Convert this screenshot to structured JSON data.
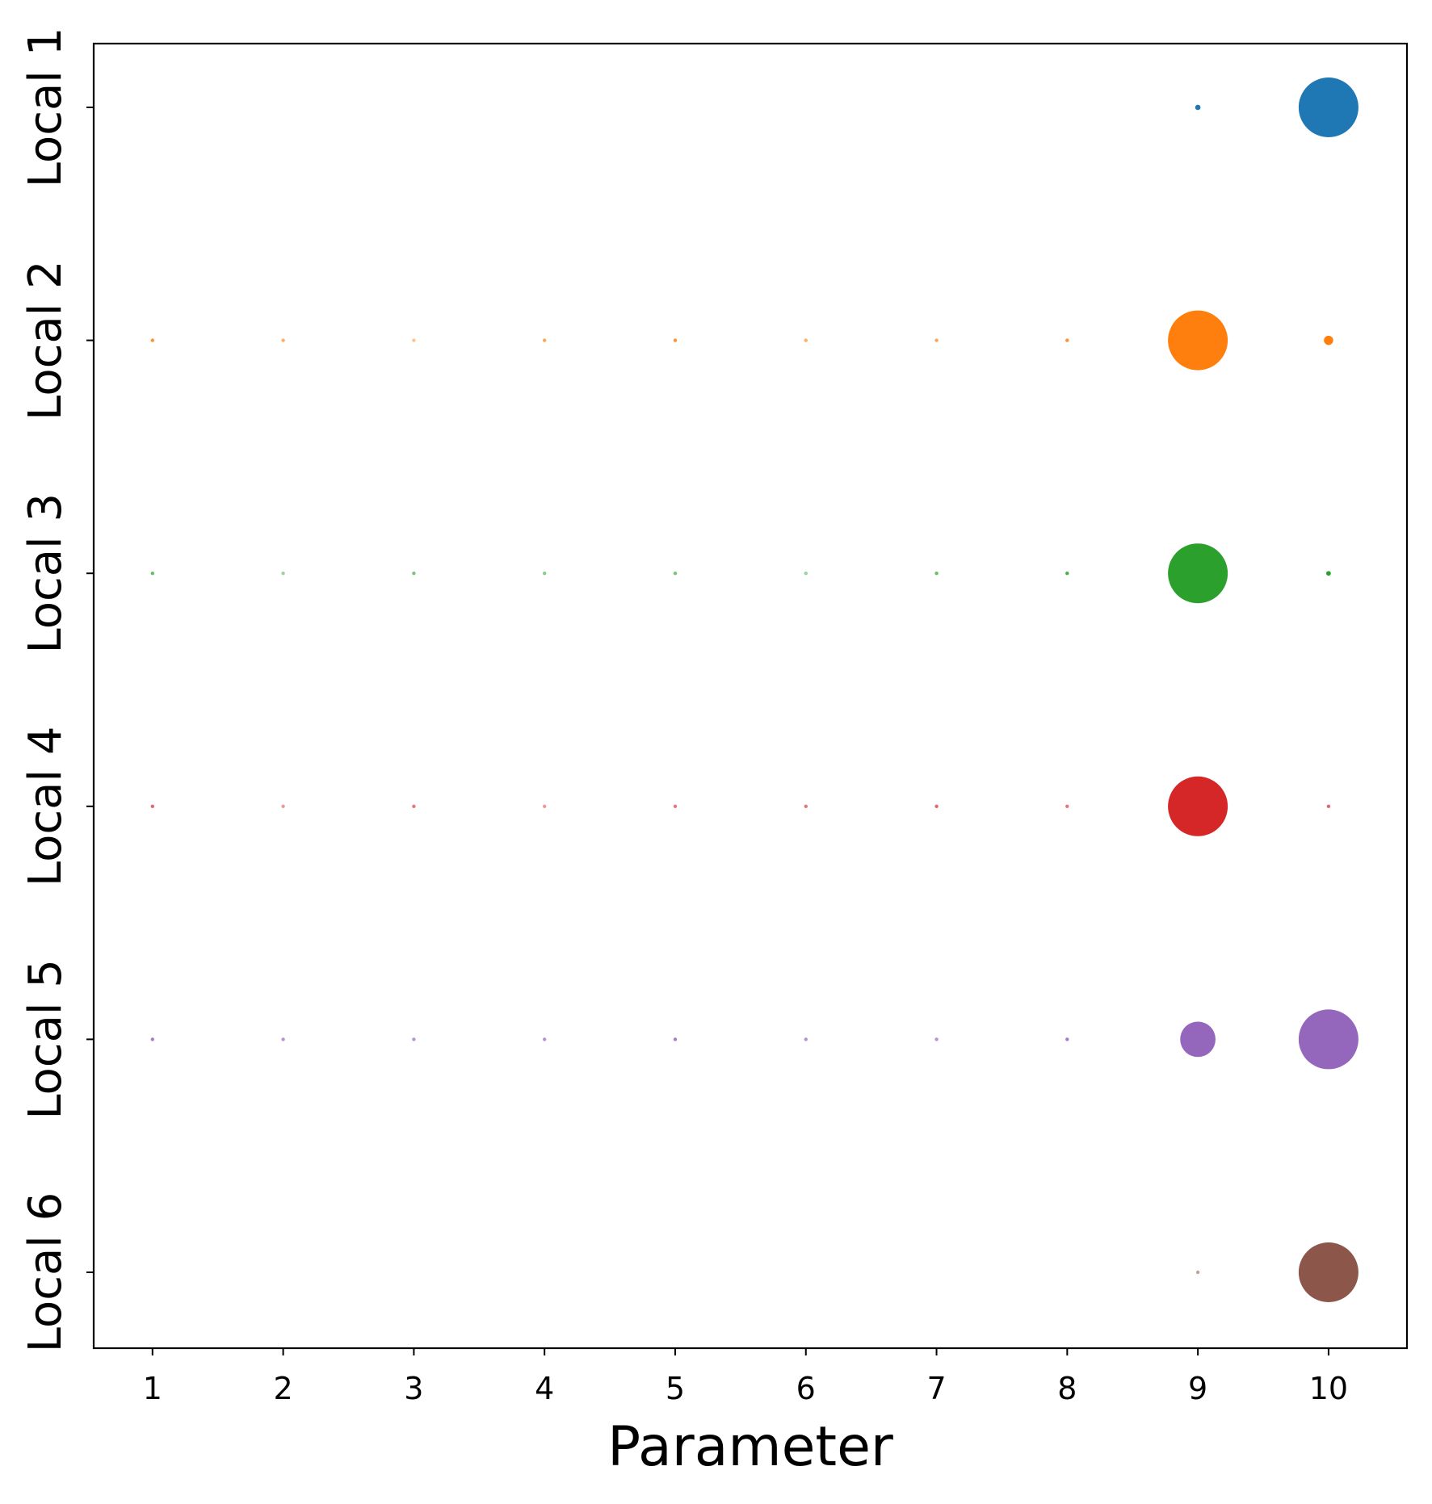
{
  "chart_data": {
    "type": "scatter",
    "title": "",
    "xlabel": "Parameter",
    "ylabel": "",
    "x": [
      1,
      2,
      3,
      4,
      5,
      6,
      7,
      8,
      9,
      10
    ],
    "xlim": [
      0.55,
      10.6
    ],
    "x_ticks": [
      "1",
      "2",
      "3",
      "4",
      "5",
      "6",
      "7",
      "8",
      "9",
      "10"
    ],
    "rows": [
      "Local 1",
      "Local 2",
      "Local 3",
      "Local 4",
      "Local 5",
      "Local 6"
    ],
    "grid": false,
    "legend": false,
    "size_encoding": "marker area proportional to value (relative weights, row max = 1)",
    "series": [
      {
        "color": "#1f77b4",
        "values": [
          0,
          0,
          0,
          0,
          0,
          0,
          0,
          0,
          0.008,
          1.0
        ]
      },
      {
        "color": "#ff7f0e",
        "values": [
          0.004,
          0.0025,
          0.0015,
          0.003,
          0.004,
          0.0025,
          0.003,
          0.004,
          1.0,
          0.024
        ]
      },
      {
        "color": "#2ca02c",
        "values": [
          0.003,
          0.0015,
          0.0025,
          0.002,
          0.0025,
          0.0015,
          0.003,
          0.004,
          1.0,
          0.006
        ]
      },
      {
        "color": "#d62728",
        "values": [
          0.003,
          0.0015,
          0.0025,
          0.0015,
          0.0025,
          0.0025,
          0.003,
          0.0025,
          1.0,
          0.003
        ]
      },
      {
        "color": "#9467bd",
        "values": [
          0.004,
          0.003,
          0.003,
          0.003,
          0.004,
          0.003,
          0.003,
          0.004,
          0.35,
          1.0
        ]
      },
      {
        "color": "#8c564b",
        "values": [
          0,
          0,
          0,
          0,
          0,
          0,
          0,
          0,
          0.002,
          1.0
        ]
      }
    ]
  }
}
